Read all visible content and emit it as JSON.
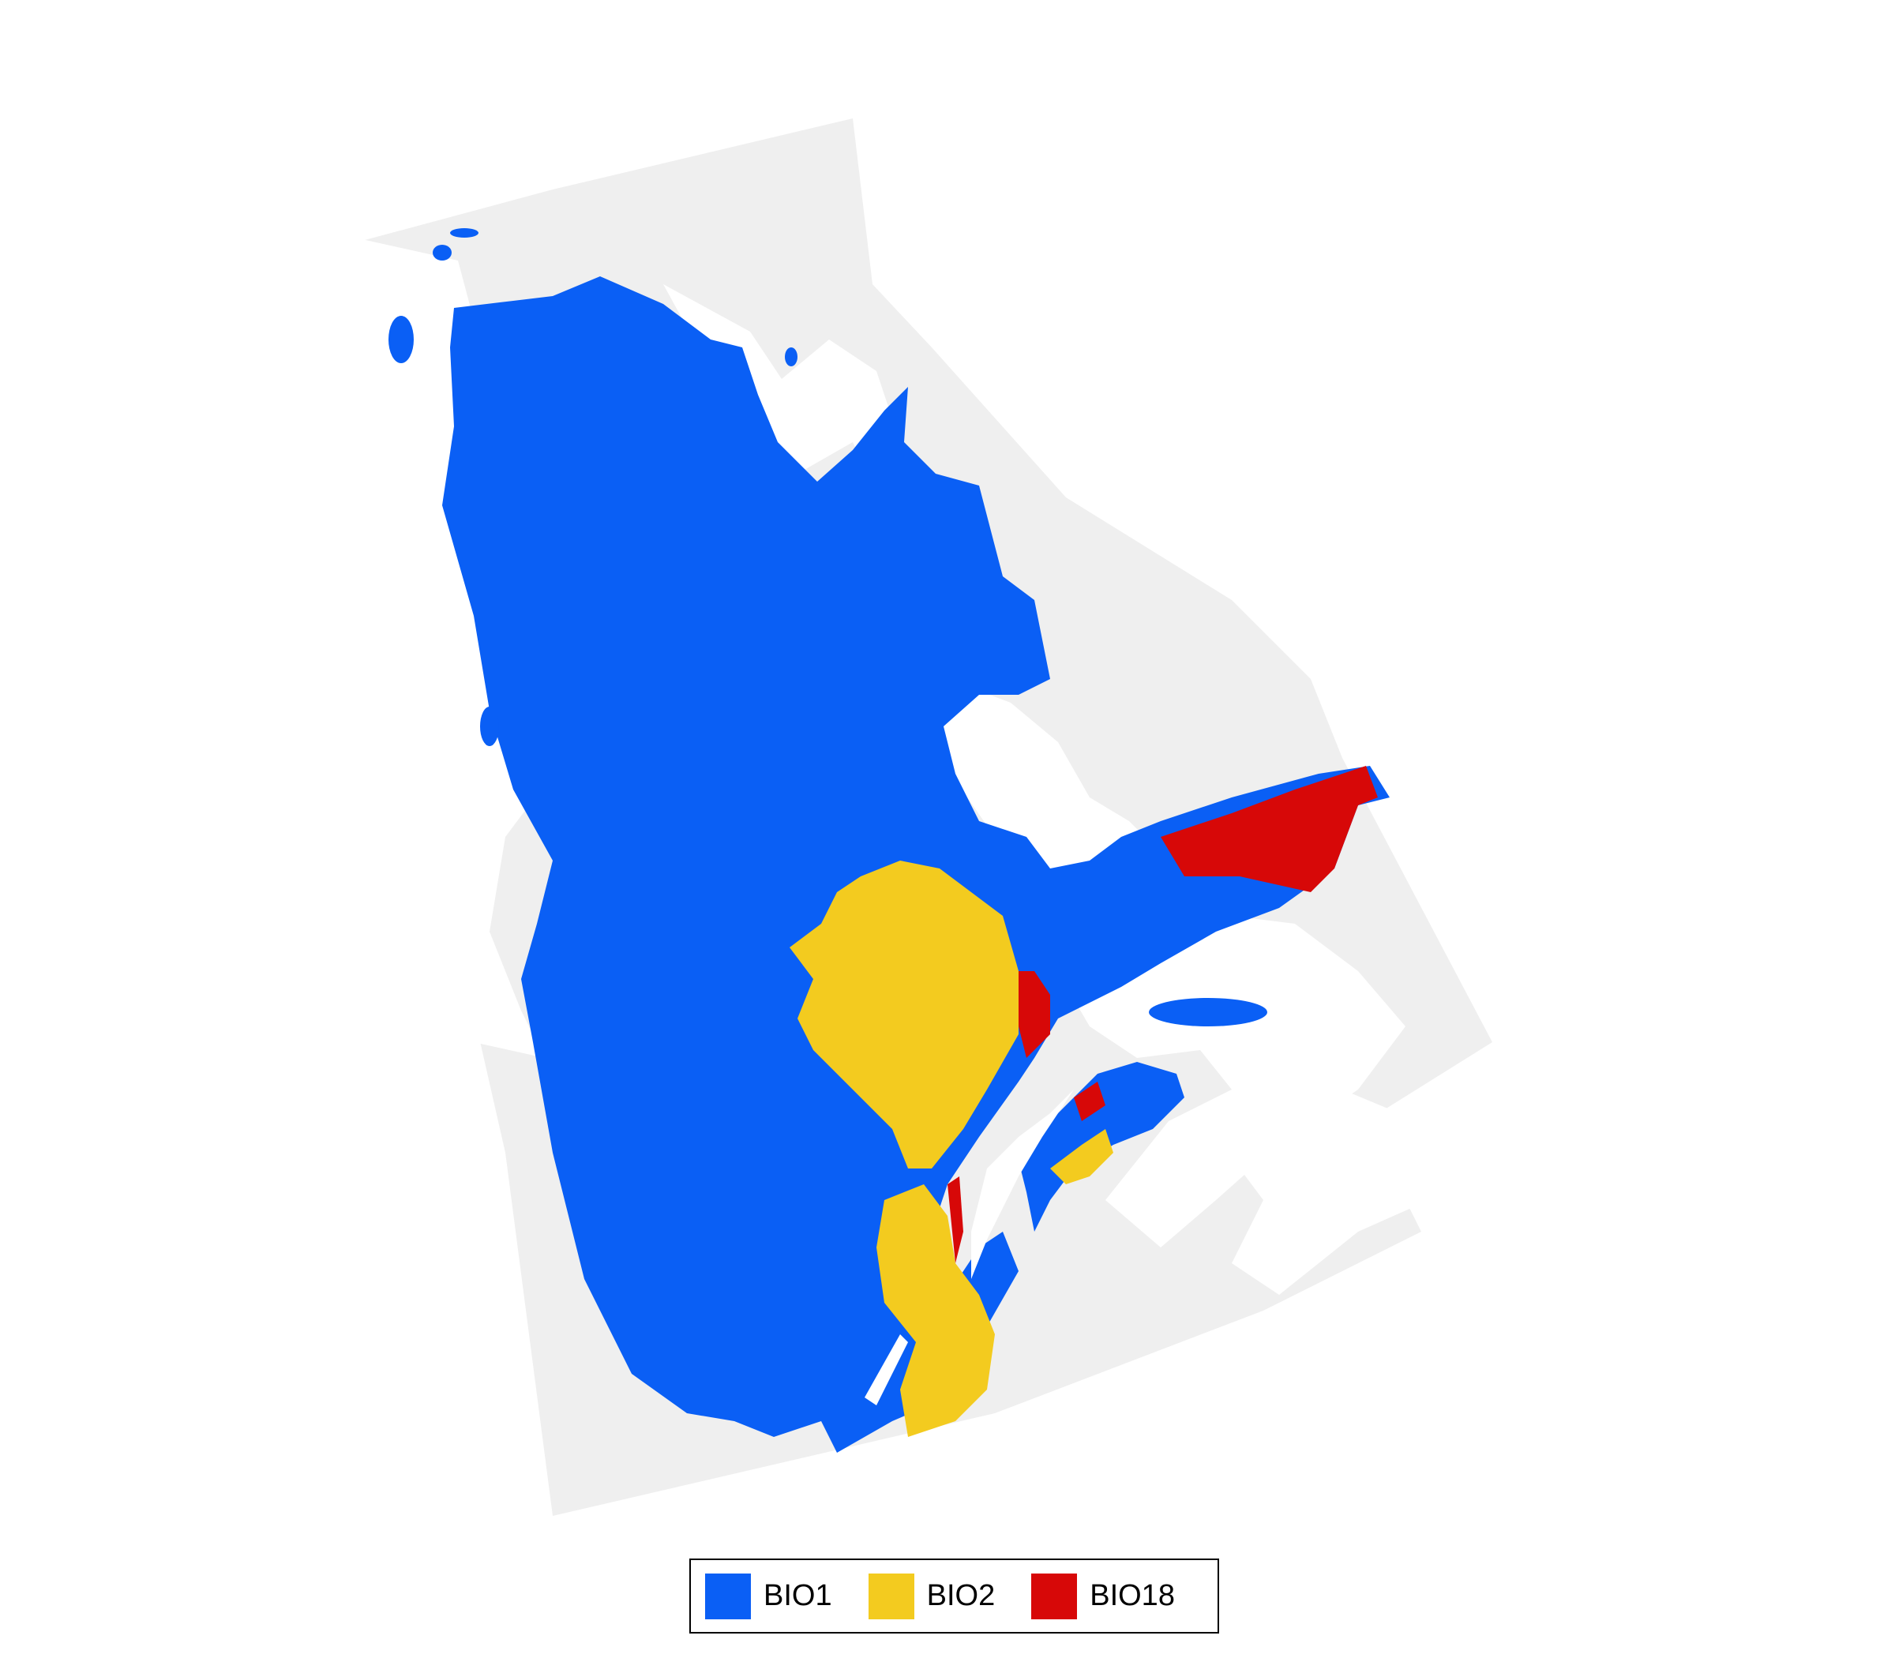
{
  "colors": {
    "background_region": "#efefef",
    "water": "#ffffff",
    "bio1": "#0a5ff5",
    "bio2": "#f3cb1f",
    "bio18": "#d70808"
  },
  "legend": {
    "items": [
      {
        "label": "BIO1",
        "color": "#0a5ff5"
      },
      {
        "label": "BIO2",
        "color": "#f3cb1f"
      },
      {
        "label": "BIO18",
        "color": "#d70808"
      }
    ]
  }
}
